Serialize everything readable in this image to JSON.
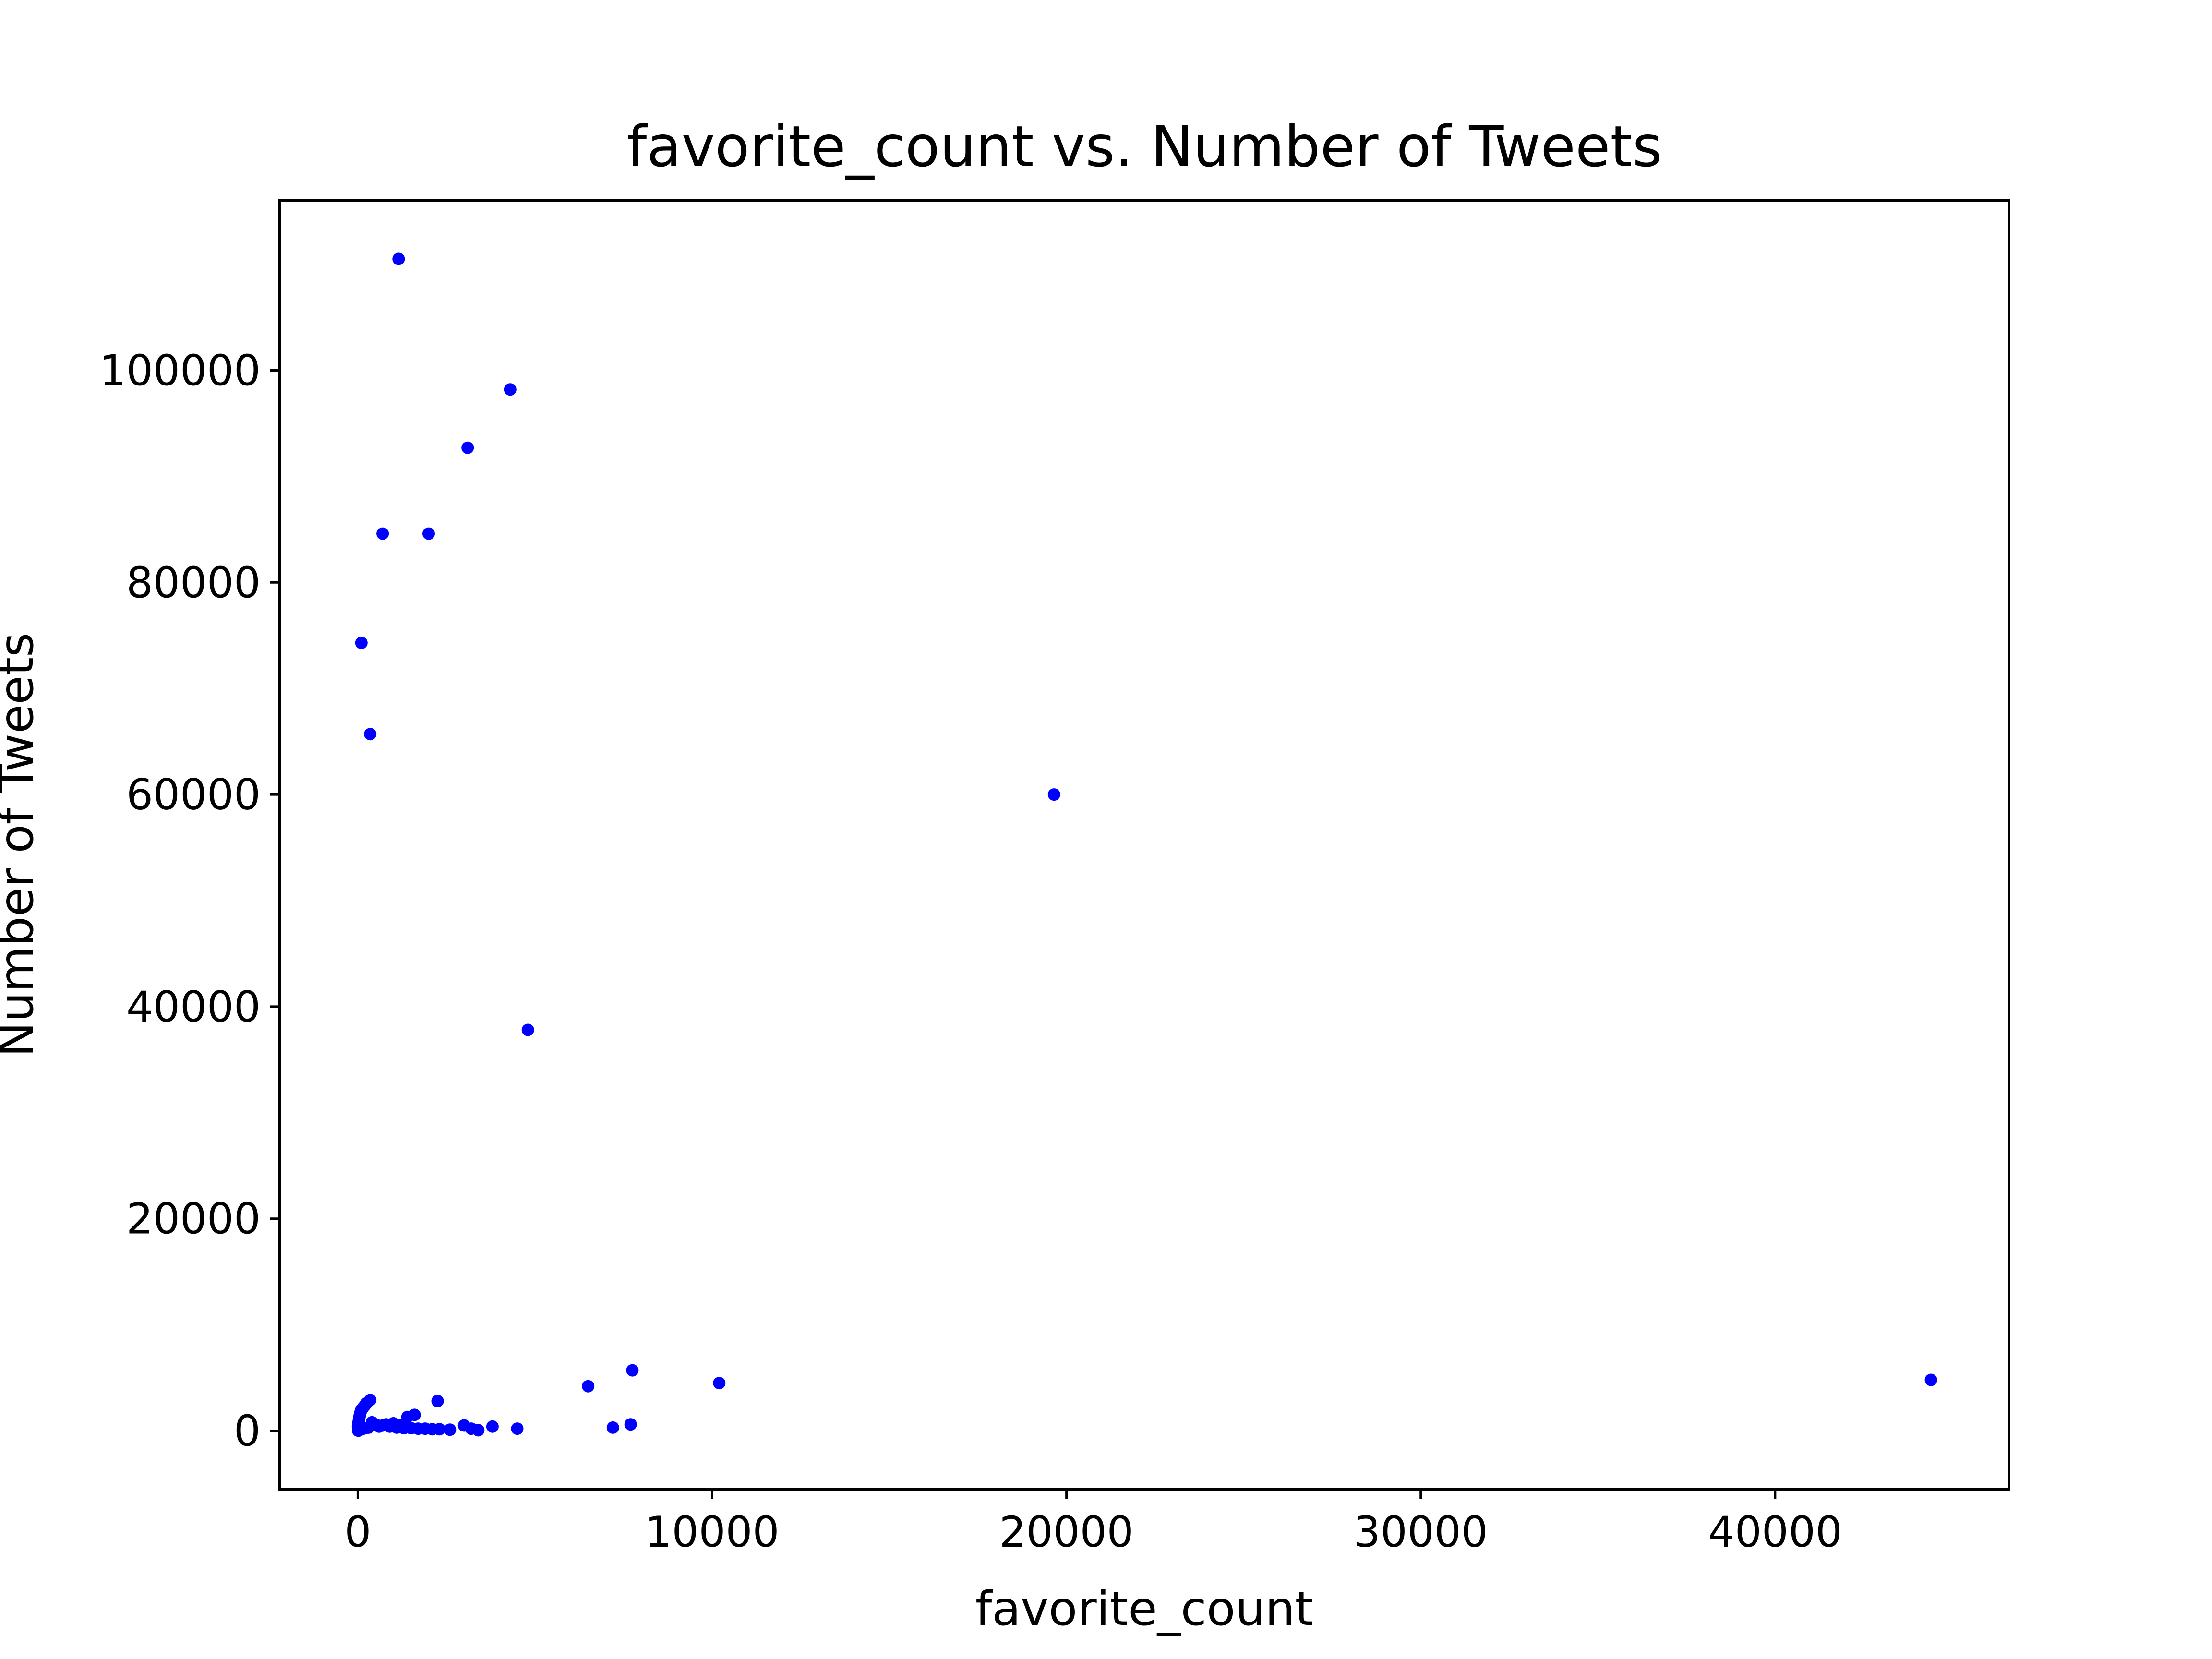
{
  "chart_data": {
    "type": "scatter",
    "title": "favorite_count vs. Number of Tweets",
    "xlabel": "favorite_count",
    "ylabel": "Number of Tweets",
    "xlim": [
      -2200,
      46600
    ],
    "ylim": [
      -5500,
      116000
    ],
    "grid": false,
    "legend": "none",
    "marker_color": "#0000ff",
    "x_ticks": [
      0,
      10000,
      20000,
      30000,
      40000
    ],
    "x_tick_labels": [
      "0",
      "10000",
      "20000",
      "30000",
      "40000"
    ],
    "y_ticks": [
      0,
      20000,
      40000,
      60000,
      80000,
      100000
    ],
    "y_tick_labels": [
      "0",
      "20000",
      "40000",
      "60000",
      "80000",
      "100000"
    ],
    "series": [
      {
        "x": [
          1150,
          4300,
          3100,
          700,
          2000,
          100,
          350,
          19650,
          4800,
          44400,
          7750,
          10200,
          6500,
          2250,
          1600,
          1400,
          3000,
          3800,
          7700,
          7200,
          4500,
          3200,
          2300,
          1900,
          1500,
          1200,
          1000,
          800,
          600,
          350,
          250,
          200,
          150,
          100,
          80,
          60,
          50,
          40,
          30,
          20,
          10,
          5,
          300,
          200,
          150,
          100,
          80,
          60,
          50,
          40,
          30,
          20,
          10,
          400,
          500,
          700,
          900,
          1100,
          1300,
          1700,
          2100,
          2600,
          3400
        ],
        "y": [
          110500,
          98200,
          92700,
          84600,
          84600,
          74300,
          65700,
          60000,
          37800,
          4800,
          5700,
          4500,
          4200,
          2800,
          1500,
          1300,
          500,
          400,
          600,
          300,
          200,
          200,
          150,
          200,
          250,
          500,
          700,
          600,
          400,
          2900,
          2600,
          2400,
          2200,
          2000,
          1800,
          1600,
          1400,
          1200,
          1000,
          800,
          600,
          400,
          300,
          250,
          200,
          150,
          120,
          100,
          80,
          60,
          40,
          20,
          10,
          800,
          600,
          500,
          400,
          300,
          250,
          200,
          150,
          100,
          50
        ]
      }
    ]
  }
}
